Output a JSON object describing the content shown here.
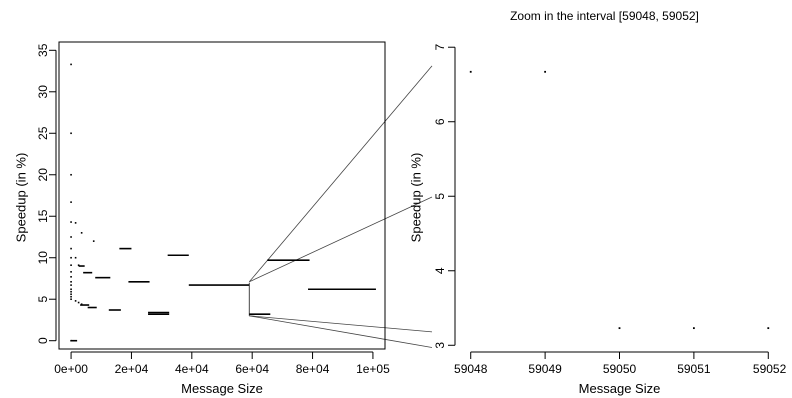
{
  "chart_data": [
    {
      "type": "scatter",
      "title": "",
      "xlabel": "Message Size",
      "ylabel": "Speedup (in %)",
      "xlim": [
        -4000,
        104000
      ],
      "ylim": [
        -1,
        36
      ],
      "xticks": [
        0,
        20000,
        40000,
        60000,
        80000,
        100000
      ],
      "xtick_labels": [
        "0e+00",
        "2e+04",
        "4e+04",
        "6e+04",
        "8e+04",
        "1e+05"
      ],
      "yticks": [
        0,
        5,
        10,
        15,
        20,
        25,
        30,
        35
      ],
      "ytick_labels": [
        "0",
        "5",
        "10",
        "15",
        "20",
        "25",
        "30",
        "35"
      ],
      "box": true,
      "grid": false,
      "points": [
        {
          "x": 0,
          "y": 33.3
        },
        {
          "x": 0,
          "y": 25.0
        },
        {
          "x": 0,
          "y": 20.0
        },
        {
          "x": 0,
          "y": 16.7
        },
        {
          "x": 0,
          "y": 14.3
        },
        {
          "x": 0,
          "y": 12.5
        },
        {
          "x": 0,
          "y": 11.1
        },
        {
          "x": 0,
          "y": 10.0
        },
        {
          "x": 0,
          "y": 9.1
        },
        {
          "x": 0,
          "y": 8.3
        },
        {
          "x": 0,
          "y": 7.7
        },
        {
          "x": 0,
          "y": 7.1
        },
        {
          "x": 0,
          "y": 6.7
        },
        {
          "x": 0,
          "y": 6.2
        },
        {
          "x": 0,
          "y": 5.9
        },
        {
          "x": 0,
          "y": 5.6
        },
        {
          "x": 0,
          "y": 5.3
        },
        {
          "x": 0,
          "y": 5.0
        },
        {
          "x": 0,
          "y": 0.0
        },
        {
          "x": 1500,
          "y": 14.2
        },
        {
          "x": 1500,
          "y": 10.0
        },
        {
          "x": 1500,
          "y": 4.8
        },
        {
          "x": 2500,
          "y": 9.1
        },
        {
          "x": 2500,
          "y": 4.6
        },
        {
          "x": 3500,
          "y": 13.0
        },
        {
          "x": 3500,
          "y": 4.4
        },
        {
          "x": 7500,
          "y": 12.0
        }
      ],
      "segments": [
        {
          "x0": 0,
          "x1": 2000,
          "y": 0.0
        },
        {
          "x0": 2500,
          "x1": 4500,
          "y": 9.0
        },
        {
          "x0": 3000,
          "x1": 6000,
          "y": 4.3
        },
        {
          "x0": 4000,
          "x1": 7000,
          "y": 8.2
        },
        {
          "x0": 5500,
          "x1": 8500,
          "y": 4.0
        },
        {
          "x0": 8000,
          "x1": 13000,
          "y": 7.6
        },
        {
          "x0": 12500,
          "x1": 16500,
          "y": 3.7
        },
        {
          "x0": 16000,
          "x1": 20000,
          "y": 11.1
        },
        {
          "x0": 19000,
          "x1": 26000,
          "y": 7.1
        },
        {
          "x0": 25500,
          "x1": 32500,
          "y": 3.4
        },
        {
          "x0": 25500,
          "x1": 32500,
          "y": 3.2
        },
        {
          "x0": 32000,
          "x1": 39000,
          "y": 10.3
        },
        {
          "x0": 39000,
          "x1": 59000,
          "y": 6.7
        },
        {
          "x0": 59000,
          "x1": 66000,
          "y": 3.2
        },
        {
          "x0": 65000,
          "x1": 79000,
          "y": 9.7
        },
        {
          "x0": 78500,
          "x1": 101000,
          "y": 6.2
        }
      ],
      "zoom_bracket": {
        "x": 59048,
        "y0": 3.0,
        "y1": 7.0
      }
    },
    {
      "type": "scatter",
      "title": "Zoom in the interval [59048, 59052]",
      "xlabel": "Message Size",
      "ylabel": "Speedup (in %)",
      "xlim": [
        59047.95,
        59052.05
      ],
      "ylim": [
        2.95,
        7.07
      ],
      "xticks": [
        59048,
        59049,
        59050,
        59051,
        59052
      ],
      "xtick_labels": [
        "59048",
        "59049",
        "59050",
        "59051",
        "59052"
      ],
      "yticks": [
        3,
        4,
        5,
        6,
        7
      ],
      "ytick_labels": [
        "3",
        "4",
        "5",
        "6",
        "7"
      ],
      "box": false,
      "grid": false,
      "points": [
        {
          "x": 59048,
          "y": 6.67
        },
        {
          "x": 59049,
          "y": 6.67
        },
        {
          "x": 59050,
          "y": 3.23
        },
        {
          "x": 59051,
          "y": 3.23
        },
        {
          "x": 59052,
          "y": 3.23
        }
      ]
    }
  ]
}
